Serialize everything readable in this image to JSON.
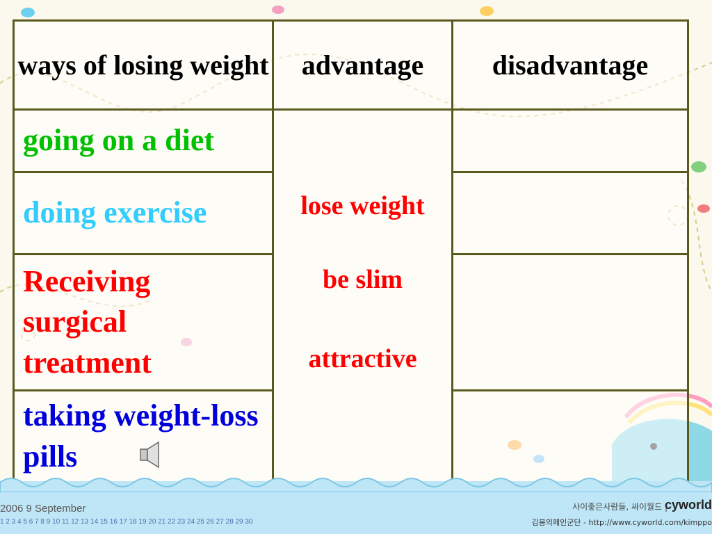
{
  "table": {
    "headers": [
      "ways of losing weight",
      "advantage",
      "disadvantage"
    ],
    "ways": [
      {
        "label": "going on a diet",
        "color": "#00c000"
      },
      {
        "label": "doing exercise",
        "color": "#33ccff"
      },
      {
        "label": "Receiving surgical treatment",
        "color": "#ff0000"
      },
      {
        "label": "taking weight-loss pills",
        "color": "#0000dd"
      }
    ],
    "advantages": [
      "lose weight",
      "be slim",
      "attractive"
    ],
    "disadvantages": [
      "",
      "",
      "",
      ""
    ]
  },
  "footer": {
    "calendar_month": "2006  9  September",
    "calendar_days": "1 2 3 4 5 6 7 8 9 10 11 12 13 14 15 16 17 18 19 20 21 22 23 24 25 26 27 28 29 30",
    "tagline": "사이좋은사람들, 싸이월드 |",
    "logo": "cyworld",
    "url_line": "김봉의페인군단 - http://www.cyworld.com/kimppo"
  },
  "icons": [
    "speaker-icon",
    "fish-icon",
    "whale-icon"
  ],
  "colors": {
    "border": "#5a5a1e",
    "advantage_text": "#ff0000",
    "footer_bg": "#bfe6f6"
  }
}
